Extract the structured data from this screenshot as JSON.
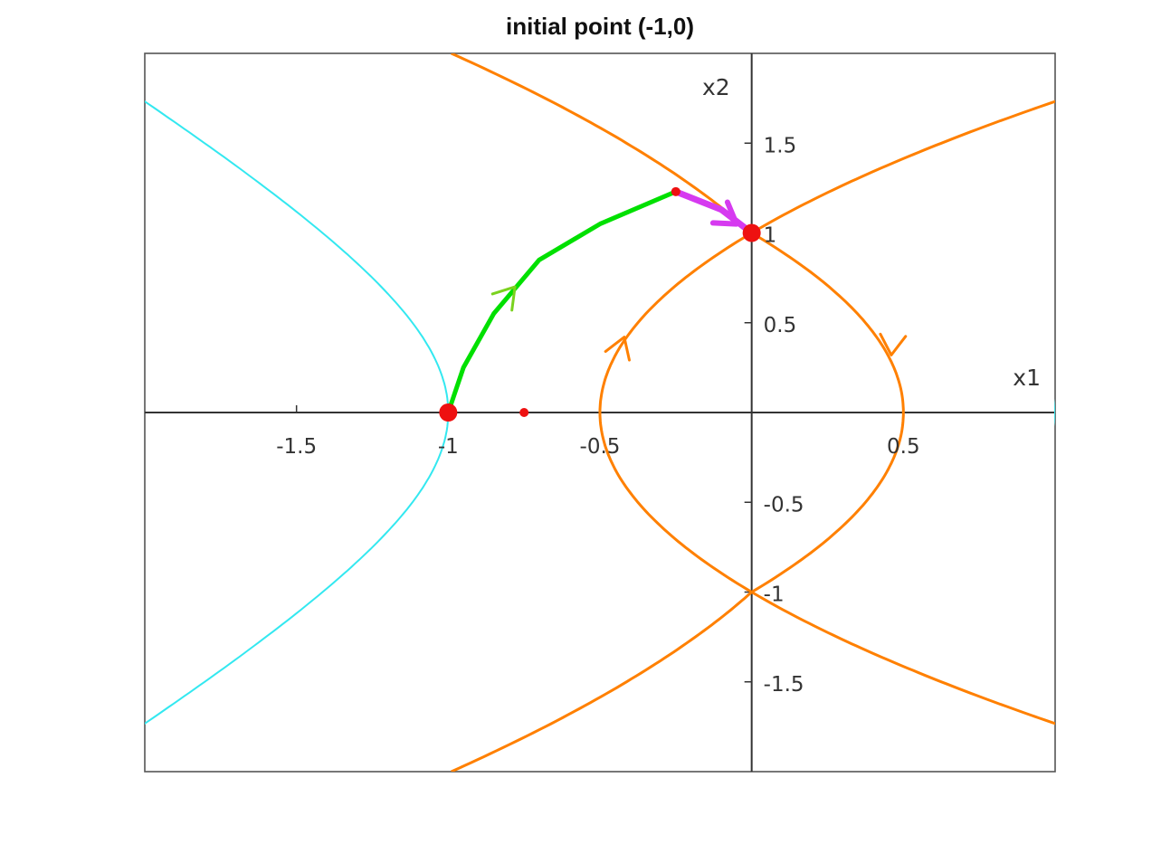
{
  "chart_data": {
    "type": "line",
    "title": "initial point (-1,0)",
    "xlabel": "x1",
    "ylabel": "x2",
    "xlim": [
      -2,
      1
    ],
    "ylim": [
      -2,
      2
    ],
    "grid": false,
    "axes_through_origin": true,
    "x_ticks": [
      {
        "value": -1.5,
        "label": "-1.5"
      },
      {
        "value": -1,
        "label": "-1"
      },
      {
        "value": -0.5,
        "label": "-0.5"
      },
      {
        "value": 0.5,
        "label": "0.5"
      }
    ],
    "y_ticks": [
      {
        "value": 1.5,
        "label": "1.5"
      },
      {
        "value": 1,
        "label": "1"
      },
      {
        "value": 0.5,
        "label": "0.5"
      },
      {
        "value": -0.5,
        "label": "-0.5"
      },
      {
        "value": -1,
        "label": "-1"
      },
      {
        "value": -1.5,
        "label": "-1.5"
      }
    ],
    "colors": {
      "cyan_curve": "#33e8f0",
      "orange_curve": "#ff8000",
      "green_path": "#00e000",
      "magenta_path": "#d63af0",
      "marker_red": "#ee1111",
      "axis": "#333333",
      "frame": "#555555"
    },
    "series": [
      {
        "color_key": "cyan_curve",
        "relation": "x1^2 - x2^2 = 1",
        "x2_range": [
          -2,
          2
        ]
      },
      {
        "color_key": "orange_curve",
        "relation": "x1 = x2 - x2^3/3 + 2/3 ... closed loop through (0,1),(0,-1)",
        "x2_range": [
          -2,
          2
        ]
      },
      {
        "color_key": "green_path",
        "points": [
          [
            -1,
            0
          ],
          [
            -0.95,
            0.25
          ],
          [
            -0.85,
            0.55
          ],
          [
            -0.7,
            0.85
          ],
          [
            -0.5,
            1.05
          ],
          [
            -0.25,
            1.23
          ]
        ]
      },
      {
        "color_key": "magenta_path",
        "points": [
          [
            -0.25,
            1.23
          ],
          [
            -0.1,
            1.13
          ],
          [
            0,
            1.0
          ]
        ]
      }
    ],
    "markers": [
      {
        "x": -1,
        "y": 0,
        "size": "large"
      },
      {
        "x": -0.75,
        "y": 0,
        "size": "small"
      },
      {
        "x": 0,
        "y": 1,
        "size": "large"
      },
      {
        "x": -0.25,
        "y": 1.23,
        "size": "small"
      }
    ]
  }
}
